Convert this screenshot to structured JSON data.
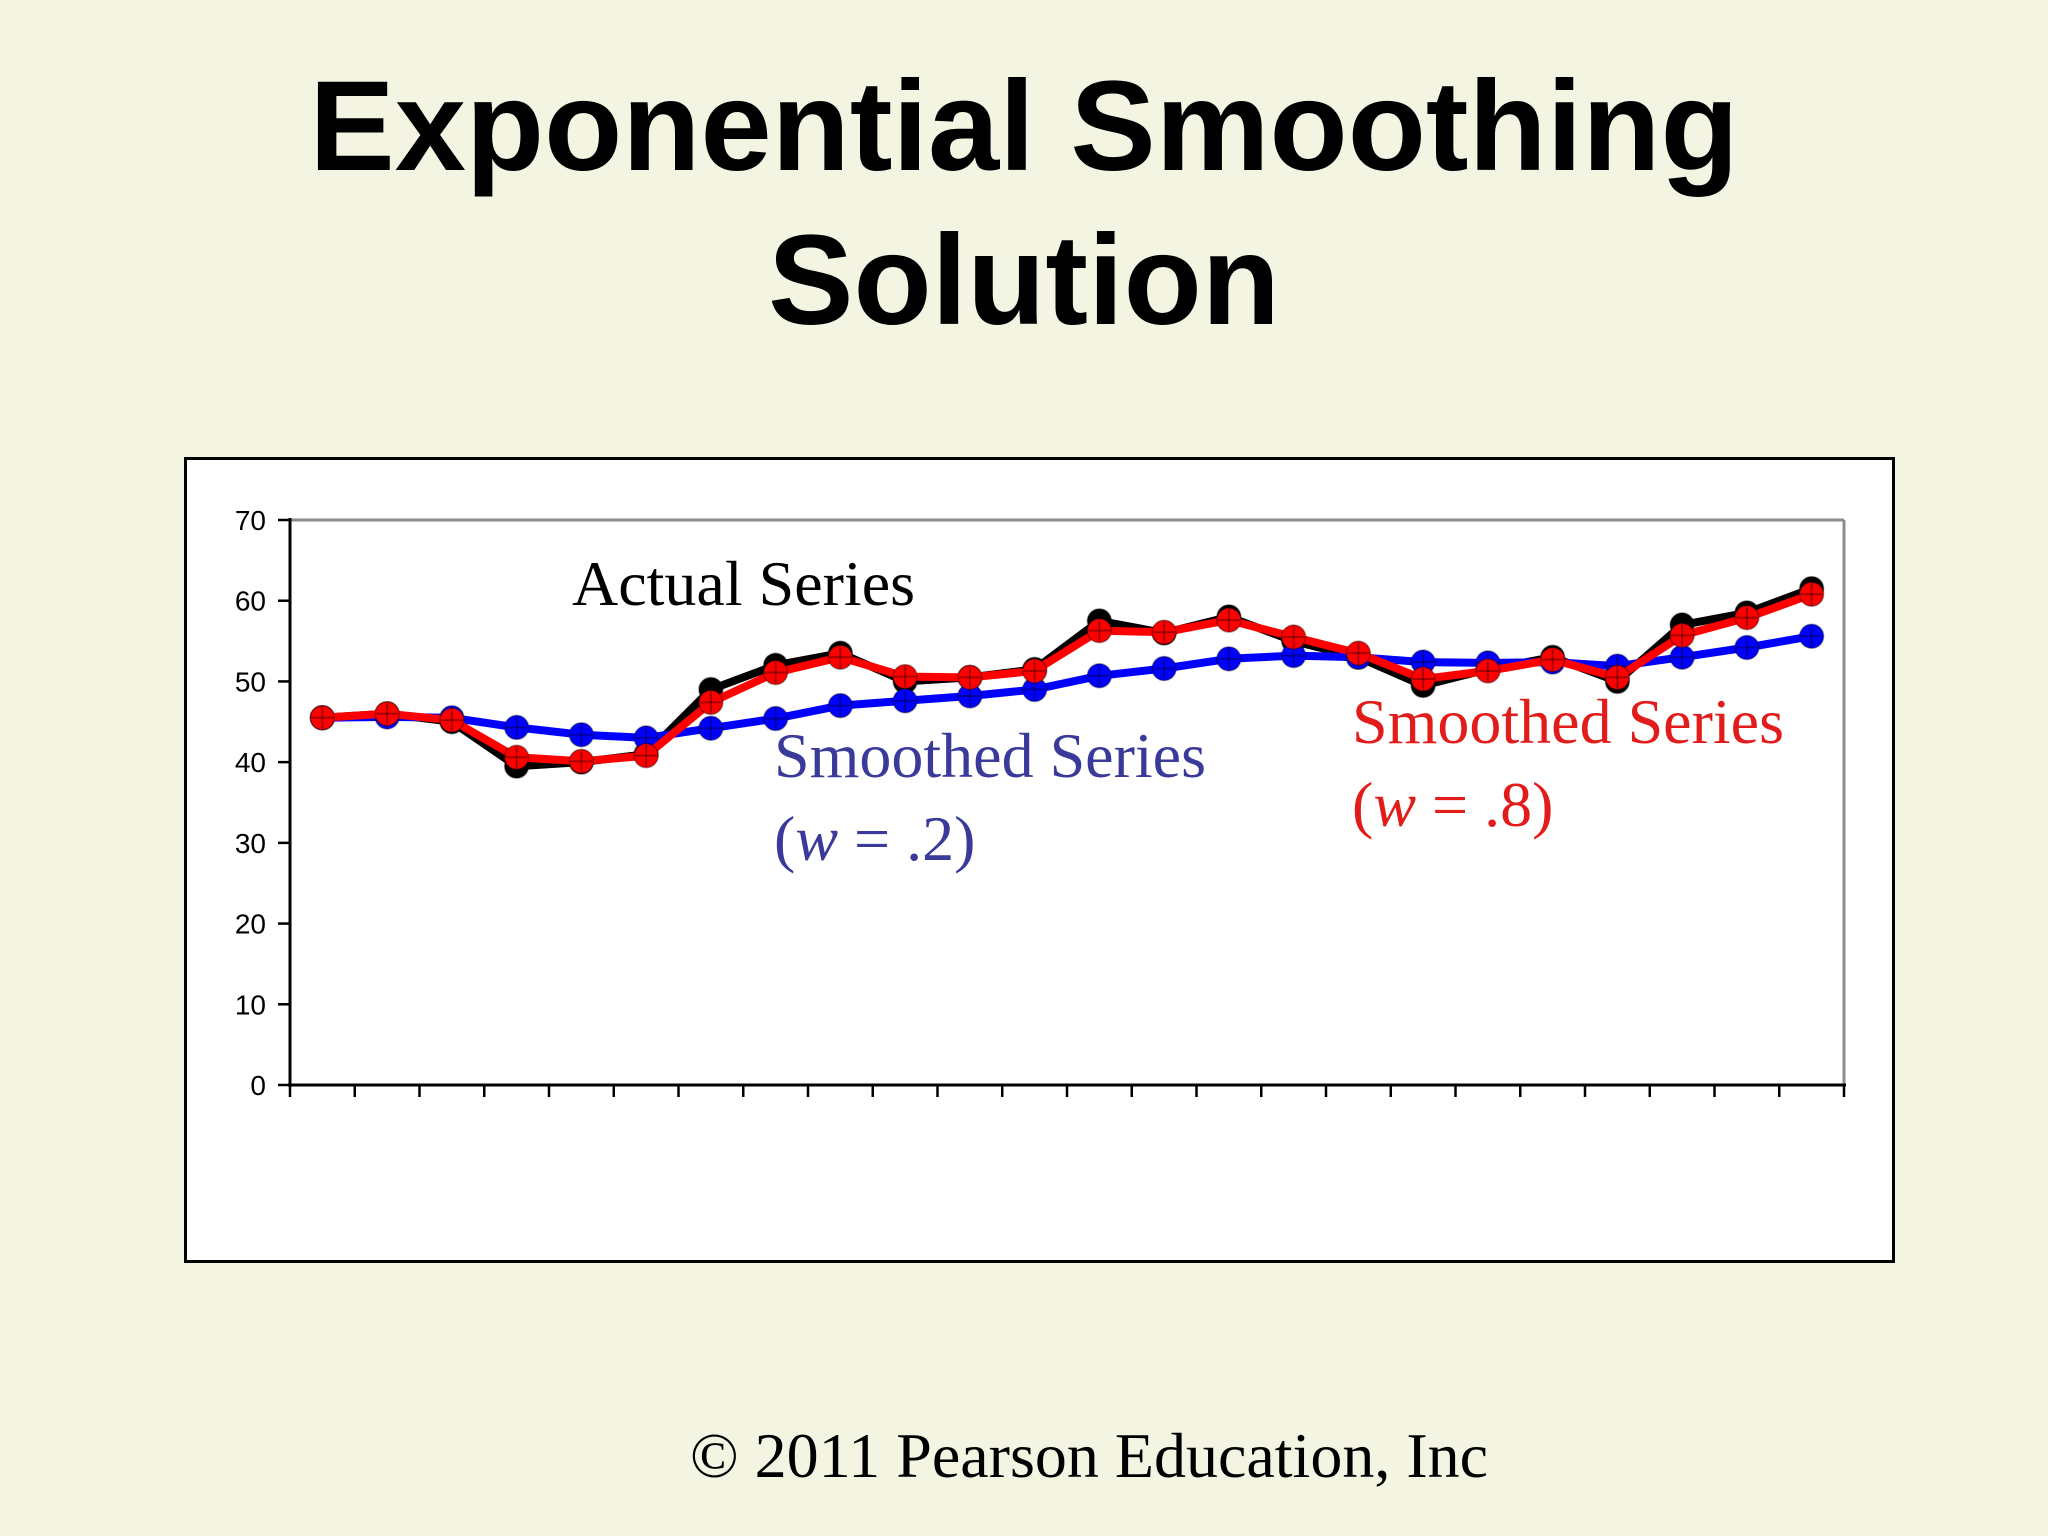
{
  "slide": {
    "title_line1": "Exponential Smoothing",
    "title_line2": "Solution",
    "footer": "© 2011 Pearson Education, Inc"
  },
  "chart_data": {
    "type": "line",
    "ylim": [
      0,
      70
    ],
    "yticks": [
      0,
      10,
      20,
      30,
      40,
      50,
      60,
      70
    ],
    "x_count": 24,
    "grid": false,
    "series": [
      {
        "name": "Actual Series",
        "color": "#000000",
        "values": [
          45.5,
          46.0,
          45.0,
          39.5,
          40.0,
          41.0,
          49.0,
          52.0,
          53.5,
          50.0,
          50.5,
          51.5,
          57.5,
          56.0,
          58.0,
          55.0,
          53.0,
          49.5,
          51.5,
          53.0,
          50.0,
          57.0,
          58.5,
          61.5
        ]
      },
      {
        "name": "Smoothed Series",
        "name_suffix": "(w = .2)",
        "color": "#0000ff",
        "label_color": "#3a3a9a",
        "values": [
          45.5,
          45.6,
          45.5,
          44.3,
          43.4,
          43.0,
          44.2,
          45.4,
          47.0,
          47.6,
          48.2,
          49.0,
          50.7,
          51.6,
          52.8,
          53.2,
          53.0,
          52.4,
          52.3,
          52.4,
          51.9,
          53.0,
          54.2,
          55.6
        ]
      },
      {
        "name": "Smoothed Series",
        "name_suffix": "(w = .8)",
        "color": "#ff0000",
        "label_color": "#e21b1b",
        "values": [
          45.5,
          46.0,
          45.2,
          40.6,
          40.1,
          40.8,
          47.4,
          51.1,
          53.0,
          50.6,
          50.5,
          51.3,
          56.3,
          56.1,
          57.6,
          55.5,
          53.5,
          50.3,
          51.3,
          52.7,
          50.5,
          55.7,
          57.9,
          60.8
        ]
      }
    ]
  }
}
